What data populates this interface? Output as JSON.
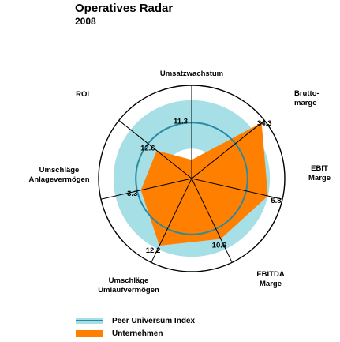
{
  "chart_data": {
    "type": "radar",
    "title": "Operatives Radar",
    "subtitle": "2008",
    "axes": [
      {
        "label_lines": [
          "Umsatzwachstum"
        ],
        "value": 11.3
      },
      {
        "label_lines": [
          "Brutto-",
          "marge"
        ],
        "value": 34.3
      },
      {
        "label_lines": [
          "EBIT",
          "Marge"
        ],
        "value": 5.8
      },
      {
        "label_lines": [
          "EBITDA",
          "Marge"
        ],
        "value": 10.6
      },
      {
        "label_lines": [
          "Umschläge",
          "Umlaufvermögen"
        ],
        "value": 12.2
      },
      {
        "label_lines": [
          "Umschläge",
          "Anlagevermögen"
        ],
        "value": 3.3
      },
      {
        "label_lines": [
          "ROI"
        ],
        "value": 12.6
      }
    ],
    "value_labels": [
      "11.3",
      "34.3",
      "5.8",
      "10.6",
      "12.2",
      "3.3",
      "12.6"
    ],
    "series": [
      {
        "name": "Peer Universum Index",
        "color": "#2a8aa0",
        "band_color": "#a6dfe6"
      },
      {
        "name": "Unternehmen",
        "color": "#ff7f00"
      }
    ],
    "normalized_values": [
      0.2,
      0.96,
      0.84,
      0.72,
      0.8,
      0.56,
      0.48
    ],
    "peer_index_level": 0.6,
    "peer_band": [
      0.32,
      0.84
    ]
  }
}
